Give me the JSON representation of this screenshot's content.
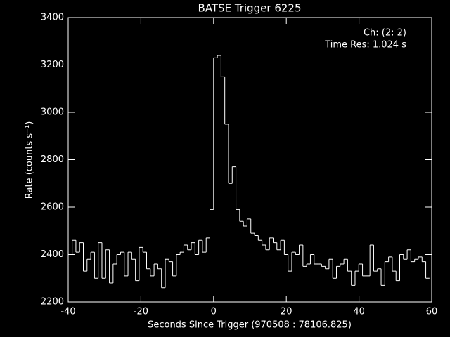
{
  "chart_data": {
    "type": "histogram",
    "title": "BATSE Trigger 6225",
    "annotations": [
      "Ch: (2: 2)",
      "Time Res: 1.024 s"
    ],
    "xlabel": "Seconds Since Trigger (970508 : 78106.825)",
    "ylabel": "Rate (counts s⁻¹)",
    "color": "#ffffff",
    "bins": [
      -39.936,
      -38.912,
      -37.888,
      -36.864,
      -35.84,
      -34.816,
      -33.792,
      -32.768,
      -31.744,
      -30.72,
      -29.696,
      -28.672,
      -27.648,
      -26.624,
      -25.6,
      -24.576,
      -23.552,
      -22.528,
      -21.504,
      -20.48,
      -19.456,
      -18.432,
      -17.408,
      -16.384,
      -15.36,
      -14.336,
      -13.312,
      -12.288,
      -11.264,
      -10.24,
      -9.216,
      -8.192,
      -7.168,
      -6.144,
      -5.12,
      -4.096,
      -3.072,
      -2.048,
      -1.024,
      0,
      1.024,
      2.048,
      3.072,
      4.096,
      5.12,
      6.144,
      7.168,
      8.192,
      9.216,
      10.24,
      11.264,
      12.288,
      13.312,
      14.336,
      15.36,
      16.384,
      17.408,
      18.432,
      19.456,
      20.48,
      21.504,
      22.528,
      23.552,
      24.576,
      25.6,
      26.624,
      27.648,
      28.672,
      29.696,
      30.72,
      31.744,
      32.768,
      33.792,
      34.816,
      35.84,
      36.864,
      37.888,
      38.912,
      39.936,
      40.96,
      41.984,
      43.008,
      44.032,
      45.056,
      46.08,
      47.104,
      48.128,
      49.152,
      50.176,
      51.2,
      52.224,
      53.248,
      54.272,
      55.296,
      56.32,
      57.344,
      58.368,
      59.392
    ],
    "values": [
      2400,
      2460,
      2410,
      2450,
      2330,
      2380,
      2410,
      2300,
      2450,
      2300,
      2420,
      2280,
      2360,
      2400,
      2410,
      2310,
      2410,
      2380,
      2290,
      2430,
      2410,
      2340,
      2310,
      2360,
      2340,
      2260,
      2380,
      2370,
      2310,
      2400,
      2410,
      2440,
      2420,
      2450,
      2400,
      2460,
      2410,
      2470,
      2590,
      3230,
      3240,
      3150,
      2950,
      2700,
      2770,
      2590,
      2540,
      2520,
      2550,
      2490,
      2480,
      2460,
      2440,
      2420,
      2470,
      2450,
      2420,
      2460,
      2400,
      2330,
      2410,
      2400,
      2440,
      2350,
      2360,
      2400,
      2360,
      2360,
      2350,
      2340,
      2380,
      2300,
      2350,
      2360,
      2380,
      2330,
      2270,
      2330,
      2360,
      2310,
      2310,
      2440,
      2330,
      2340,
      2270,
      2370,
      2390,
      2330,
      2290,
      2400,
      2380,
      2420,
      2370,
      2380,
      2390,
      2370,
      2300
    ],
    "xlim": [
      -40,
      60
    ],
    "xticks": [
      -40,
      -20,
      0,
      20,
      40,
      60
    ],
    "ylim": [
      2200,
      3400
    ],
    "yticks": [
      2200,
      2400,
      2600,
      2800,
      3000,
      3200,
      3400
    ]
  }
}
